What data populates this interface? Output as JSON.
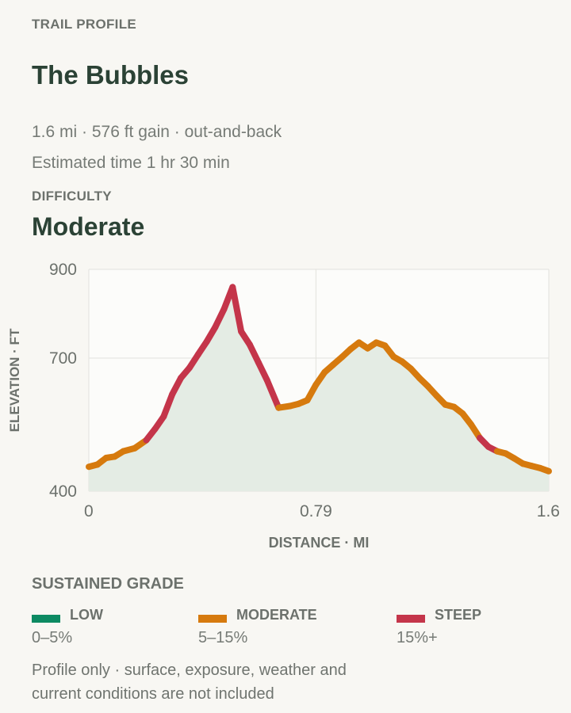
{
  "header": {
    "kicker": "TRAIL PROFILE",
    "title": "The Bubbles",
    "meta": "1.6 mi · 576 ft gain · out-and-back",
    "time": "Estimated time 1 hr 30 min",
    "difficulty_label": "DIFFICULTY",
    "difficulty_value": "Moderate"
  },
  "chart_data": {
    "type": "area",
    "x_label": "DISTANCE · MI",
    "y_label": "ELEVATION · FT",
    "xlim": [
      0,
      1.6
    ],
    "ylim": [
      400,
      900
    ],
    "x_ticks": [
      0,
      0.79,
      1.6
    ],
    "x_tick_labels": [
      "0",
      "0.79",
      "1.6"
    ],
    "y_ticks": [
      400,
      700,
      900
    ],
    "y_tick_labels": [
      "400",
      "700",
      "900"
    ],
    "grid": true,
    "series": [
      {
        "x": [
          0.0,
          0.03,
          0.06,
          0.09,
          0.12,
          0.16,
          0.2,
          0.23,
          0.26,
          0.29,
          0.32,
          0.35,
          0.38,
          0.41,
          0.44,
          0.47,
          0.5,
          0.53,
          0.56,
          0.59,
          0.62,
          0.66,
          0.7,
          0.73,
          0.76,
          0.79,
          0.82,
          0.85,
          0.88,
          0.91,
          0.94,
          0.97,
          1.0,
          1.03,
          1.06,
          1.09,
          1.12,
          1.15,
          1.18,
          1.21,
          1.24,
          1.27,
          1.3,
          1.33,
          1.36,
          1.39,
          1.42,
          1.45,
          1.48,
          1.51,
          1.54,
          1.57,
          1.6
        ],
        "elevation": [
          455,
          460,
          475,
          478,
          490,
          497,
          515,
          540,
          568,
          618,
          655,
          678,
          708,
          737,
          770,
          810,
          860,
          760,
          730,
          690,
          650,
          588,
          592,
          597,
          605,
          640,
          668,
          685,
          702,
          720,
          735,
          722,
          735,
          728,
          703,
          692,
          676,
          655,
          636,
          615,
          595,
          590,
          575,
          550,
          520,
          500,
          490,
          485,
          474,
          462,
          457,
          452,
          445
        ]
      }
    ],
    "grade_segments": [
      {
        "from": 0.0,
        "to": 0.2,
        "grade": "moderate"
      },
      {
        "from": 0.2,
        "to": 0.66,
        "grade": "steep"
      },
      {
        "from": 0.66,
        "to": 1.36,
        "grade": "moderate"
      },
      {
        "from": 1.36,
        "to": 1.42,
        "grade": "steep"
      },
      {
        "from": 1.42,
        "to": 1.6,
        "grade": "moderate"
      }
    ]
  },
  "legend": {
    "title": "SUSTAINED GRADE",
    "items": [
      {
        "key": "low",
        "label": "LOW",
        "range": "0–5%",
        "color": "#0d8a62"
      },
      {
        "key": "moderate",
        "label": "MODERATE",
        "range": "5–15%",
        "color": "#d67a0e"
      },
      {
        "key": "steep",
        "label": "STEEP",
        "range": "15%+",
        "color": "#c4354a"
      }
    ]
  },
  "colors": {
    "area_fill": "#e4ece4",
    "plot_bg": "#fcfcfa",
    "grid": "#e2e2dd",
    "axis_text": "#6c716c"
  },
  "footnote": "Profile only · surface, exposure, weather and current conditions are not included"
}
